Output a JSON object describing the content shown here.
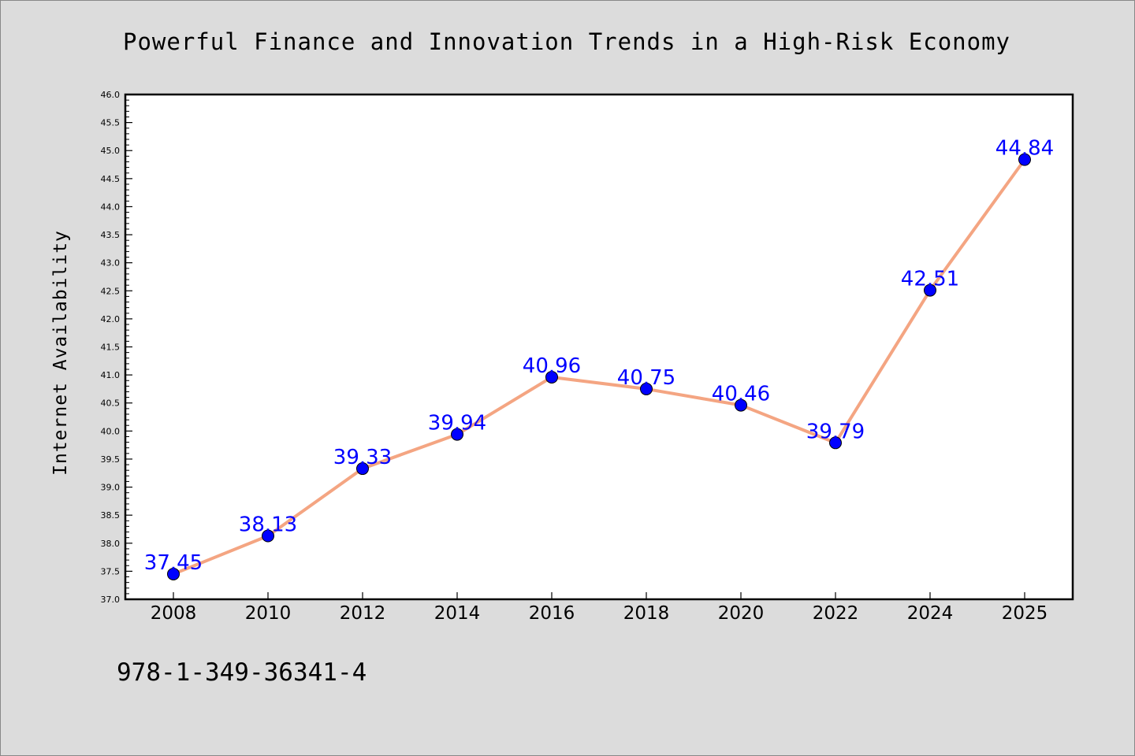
{
  "chart_data": {
    "type": "line",
    "title": "Powerful Finance and Innovation Trends in a High-Risk Economy",
    "xlabel": "",
    "ylabel": "Internet Availability",
    "categories": [
      "2008",
      "2010",
      "2012",
      "2014",
      "2016",
      "2018",
      "2020",
      "2022",
      "2024",
      "2025"
    ],
    "series": [
      {
        "values": [
          37.45,
          38.13,
          39.33,
          39.94,
          40.96,
          40.75,
          40.46,
          39.79,
          42.51,
          44.84
        ],
        "data_labels": [
          "37.45",
          "38.13",
          "39.33",
          "39.94",
          "40.96",
          "40.75",
          "40.46",
          "39.79",
          "42.51",
          "44.84"
        ]
      }
    ],
    "ylim": [
      37.0,
      46.0
    ],
    "yticks": [
      "37.0",
      "37.5",
      "38.0",
      "38.5",
      "39.0",
      "39.5",
      "40.0",
      "40.5",
      "41.0",
      "41.5",
      "42.0",
      "42.5",
      "43.0",
      "43.5",
      "44.0",
      "44.5",
      "45.0",
      "45.5",
      "46.0"
    ],
    "grid": false,
    "colors": {
      "line": "#f4a582",
      "marker": "#0000ff",
      "data_label": "#0000ff",
      "plot_background": "#ffffff",
      "figure_background": "#dcdcdc"
    }
  },
  "footer_text": "978-1-349-36341-4"
}
